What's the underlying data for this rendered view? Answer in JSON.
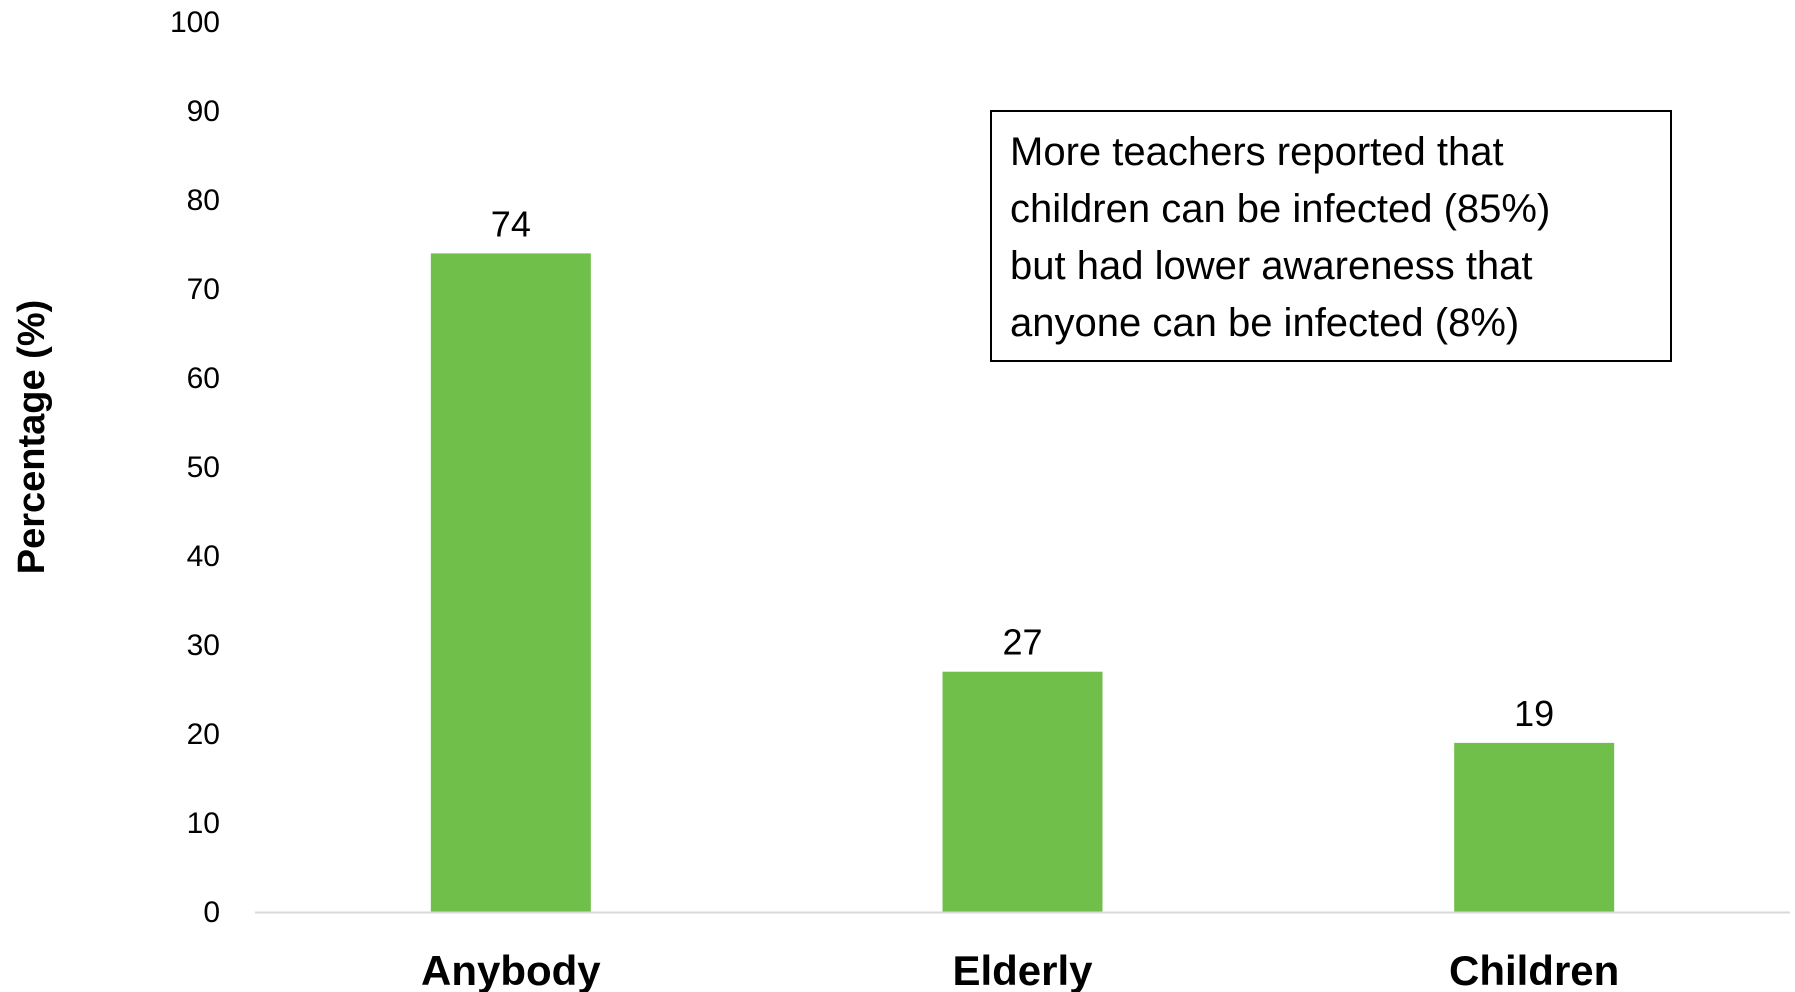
{
  "chart_data": {
    "type": "bar",
    "categories": [
      "Anybody",
      "Elderly",
      "Children"
    ],
    "values": [
      74,
      27,
      19
    ],
    "data_labels": [
      "74",
      "27",
      "19"
    ],
    "title": "",
    "xlabel": "",
    "ylabel": "Percentage (%)",
    "ylim": [
      0,
      100
    ],
    "yticks": [
      "0",
      "10",
      "20",
      "30",
      "40",
      "50",
      "60",
      "70",
      "80",
      "90",
      "100"
    ],
    "grid": false,
    "bar_color": "#70bf4b",
    "axis_color": "#d9d9d9",
    "annotation": {
      "lines": [
        "More teachers reported that",
        "children can be infected (85%)",
        "but had lower awareness that",
        "anyone can be infected (8%)"
      ]
    }
  }
}
